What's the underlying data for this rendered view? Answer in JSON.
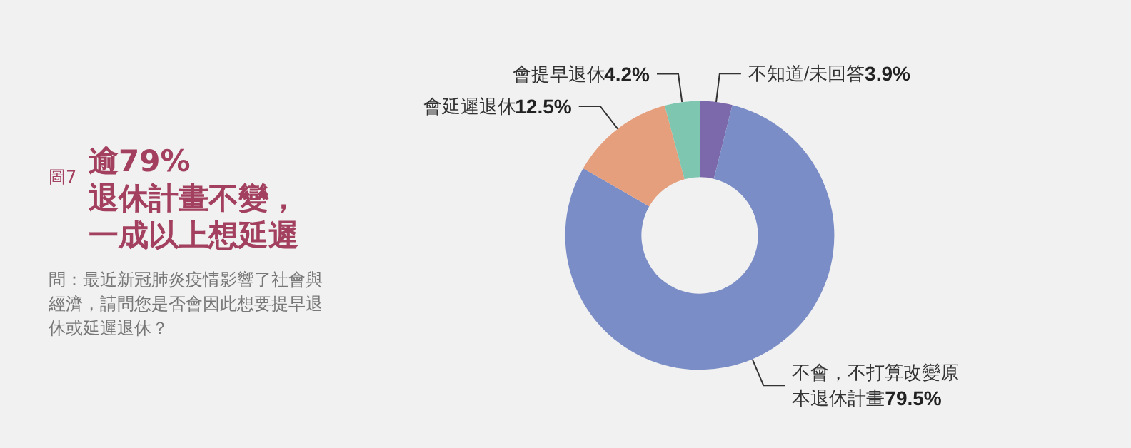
{
  "chart_data": {
    "type": "donut",
    "title": "逾79%退休計畫不變，一成以上想延遲",
    "subtitle": "問：最近新冠肺炎疫情影響了社會與經濟，請問您是否會因此想要提早退休或延遲退休？",
    "annotations": [
      "圖7"
    ],
    "categories": [
      "不知道/未回答",
      "不會，不打算改變原本退休計畫",
      "會延遲退休",
      "會提早退休"
    ],
    "values": [
      3.9,
      79.5,
      12.5,
      4.2
    ],
    "colors": [
      "#7b69ac",
      "#7a8dc6",
      "#e69f7d",
      "#7fc6b1"
    ],
    "value_labels": [
      "3.9%",
      "79.5%",
      "12.5%",
      "4.2%"
    ]
  }
}
